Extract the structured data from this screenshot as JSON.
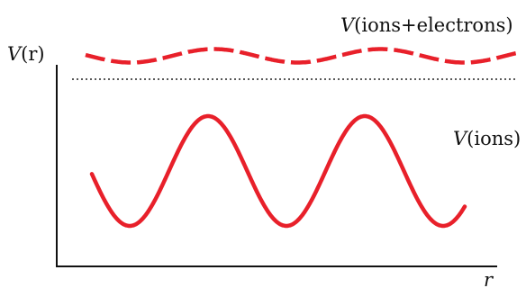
{
  "diagram": {
    "y_axis_label_letter": "V",
    "y_axis_label_rest": "(r)",
    "x_axis_label": "r",
    "upper_curve": {
      "label_letter": "V",
      "label_rest": "(ions+electrons)",
      "color": "#e8202a",
      "style": "dashed"
    },
    "lower_curve": {
      "label_letter": "V",
      "label_rest": "(ions)",
      "color": "#e8202a",
      "style": "solid"
    },
    "reference_line": {
      "color": "#222222",
      "style": "dotted"
    },
    "axis_color": "#111111"
  }
}
